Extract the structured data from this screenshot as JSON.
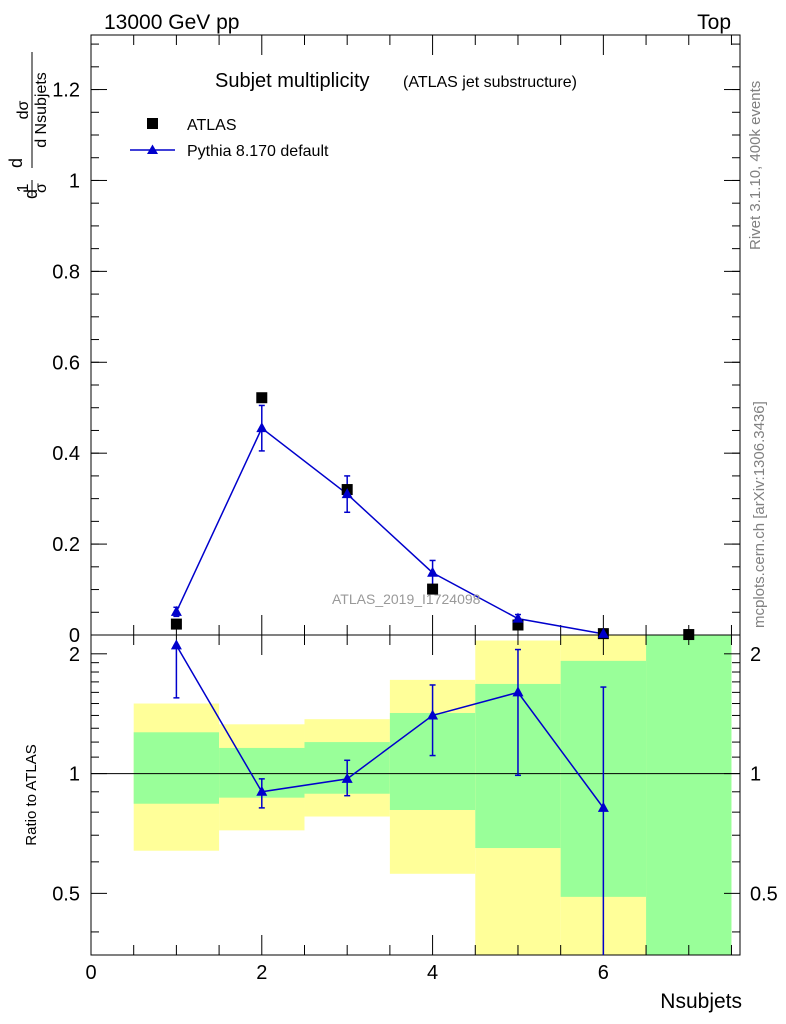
{
  "header": {
    "left": "13000 GeV pp",
    "right": "Top"
  },
  "main_title": "Subjet multiplicity",
  "main_subtitle": "(ATLAS jet substructure)",
  "side_text": {
    "rivet": "Rivet 3.1.10,  400k events",
    "mcplots": "mcplots.cern.ch [arXiv:1306.3436]"
  },
  "watermark": "ATLAS_2019_I1724098",
  "legend": {
    "data_label": "ATLAS",
    "mc_label": "Pythia 8.170 default"
  },
  "colors": {
    "mc": "#0000cc",
    "data": "#000000",
    "band_inner": "#99ff99",
    "band_outer": "#ffff99"
  },
  "chart_data": [
    {
      "type": "scatter",
      "panel": "main",
      "ylabel": "1/σ dσ/d Nsubjets",
      "xlim": [
        0,
        7.6
      ],
      "ylim": [
        0,
        1.32
      ],
      "yticks": [
        "0",
        "0.2",
        "0.4",
        "0.6",
        "0.8",
        "1",
        "1.2"
      ],
      "series": [
        {
          "name": "ATLAS",
          "x": [
            1,
            2,
            3,
            4,
            5,
            6,
            7
          ],
          "y": [
            0.024,
            0.522,
            0.32,
            0.101,
            0.022,
            0.003,
            0.001
          ]
        },
        {
          "name": "Pythia 8.170 default",
          "x": [
            1,
            2,
            3,
            4,
            5,
            6
          ],
          "y": [
            0.051,
            0.455,
            0.31,
            0.137,
            0.036,
            0.0025
          ],
          "yerr": [
            0.01,
            0.05,
            0.04,
            0.027,
            0.009,
            0.002
          ]
        }
      ]
    },
    {
      "type": "line",
      "panel": "ratio",
      "ylabel": "Ratio to ATLAS",
      "xlabel": "Nsubjets",
      "xlim": [
        0,
        7.6
      ],
      "ylim": [
        0.35,
        2.23
      ],
      "xticks": [
        "0",
        "2",
        "4",
        "6"
      ],
      "yticks": [
        "0.5",
        "1",
        "2"
      ],
      "reference_line": 1,
      "bands": [
        {
          "x0": 0.5,
          "x1": 1.5,
          "inner": [
            0.84,
            1.27
          ],
          "outer": [
            0.64,
            1.5
          ]
        },
        {
          "x0": 1.5,
          "x1": 2.5,
          "inner": [
            0.87,
            1.16
          ],
          "outer": [
            0.72,
            1.33
          ]
        },
        {
          "x0": 2.5,
          "x1": 3.5,
          "inner": [
            0.89,
            1.2
          ],
          "outer": [
            0.78,
            1.37
          ]
        },
        {
          "x0": 3.5,
          "x1": 4.5,
          "inner": [
            0.81,
            1.42
          ],
          "outer": [
            0.56,
            1.72
          ]
        },
        {
          "x0": 4.5,
          "x1": 5.5,
          "inner": [
            0.65,
            1.68
          ],
          "outer": [
            0.35,
            2.16
          ]
        },
        {
          "x0": 5.5,
          "x1": 6.5,
          "inner": [
            0.49,
            1.92
          ],
          "outer": [
            0.35,
            2.23
          ]
        },
        {
          "x0": 6.5,
          "x1": 7.5,
          "inner": [
            0.35,
            2.23
          ],
          "outer": [
            0.35,
            2.23
          ]
        }
      ],
      "series": [
        {
          "name": "Pythia 8.170 default",
          "x": [
            1,
            2,
            3,
            4,
            5,
            6
          ],
          "y": [
            2.1,
            0.9,
            0.97,
            1.4,
            1.6,
            0.82
          ],
          "yerr_lo": [
            0.55,
            0.08,
            0.09,
            0.29,
            0.61,
            0.47
          ],
          "yerr_hi": [
            0.0,
            0.07,
            0.11,
            0.27,
            0.45,
            0.83
          ]
        }
      ]
    }
  ]
}
